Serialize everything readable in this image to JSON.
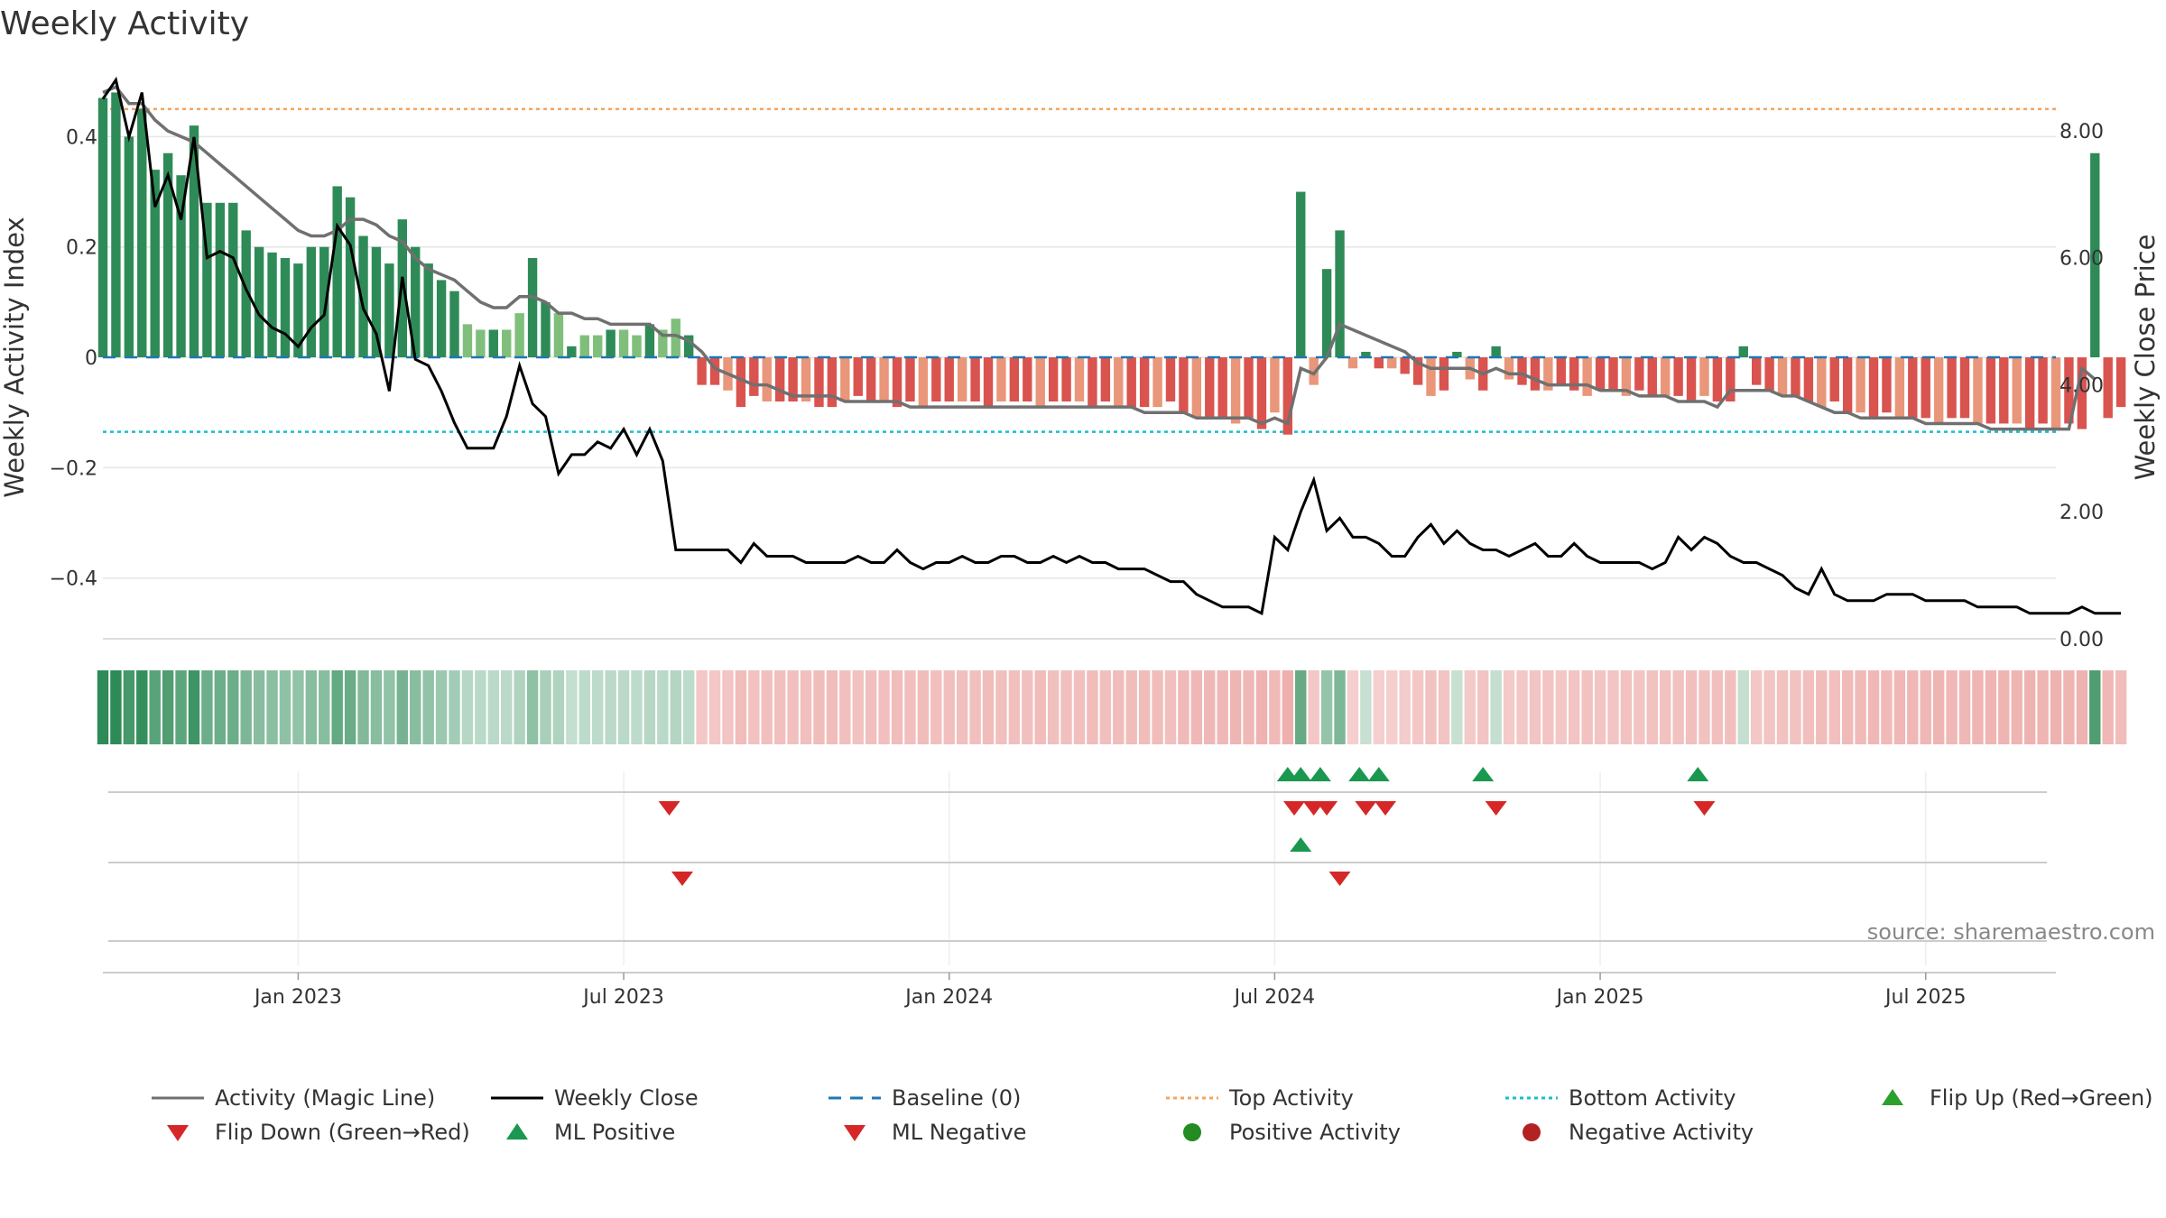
{
  "chart_data": {
    "type": "bar",
    "title": "Weekly Activity",
    "left_axis_label": "Weekly Activity Index",
    "right_axis_label": "Weekly Close Price",
    "left_ylim": [
      -0.51,
      0.52
    ],
    "right_ylim": [
      0.0,
      8.95
    ],
    "left_ticks": [
      {
        "v": 0.4,
        "label": "0.4"
      },
      {
        "v": 0.2,
        "label": "0.2"
      },
      {
        "v": 0,
        "label": "0"
      },
      {
        "v": -0.2,
        "label": "−0.2"
      },
      {
        "v": -0.4,
        "label": "−0.4"
      }
    ],
    "right_ticks": [
      {
        "v": 8,
        "label": "8.00"
      },
      {
        "v": 6,
        "label": "6.00"
      },
      {
        "v": 4,
        "label": "4.00"
      },
      {
        "v": 2,
        "label": "2.00"
      },
      {
        "v": 0,
        "label": "0.00"
      }
    ],
    "x_ticks": [
      "Jan 2023",
      "Jul 2023",
      "Jan 2024",
      "Jul 2024",
      "Jan 2025",
      "Jul 2025"
    ],
    "x_tick_weeks": [
      17,
      42,
      67,
      92,
      117,
      142
    ],
    "week_range": [
      2,
      152
    ],
    "top_activity": 0.45,
    "bottom_activity": -0.135,
    "source": "source: sharemaestro.com",
    "activity_bars": [
      0.47,
      0.48,
      0.4,
      0.45,
      0.34,
      0.37,
      0.33,
      0.42,
      0.28,
      0.28,
      0.28,
      0.23,
      0.2,
      0.19,
      0.18,
      0.17,
      0.2,
      0.2,
      0.31,
      0.29,
      0.22,
      0.2,
      0.17,
      0.25,
      0.2,
      0.17,
      0.14,
      0.12,
      0.06,
      0.05,
      0.05,
      0.05,
      0.08,
      0.18,
      0.1,
      0.08,
      0.02,
      0.04,
      0.04,
      0.05,
      0.05,
      0.04,
      0.06,
      0.05,
      0.07,
      0.04,
      -0.05,
      -0.05,
      -0.06,
      -0.09,
      -0.07,
      -0.08,
      -0.08,
      -0.08,
      -0.08,
      -0.09,
      -0.09,
      -0.08,
      -0.07,
      -0.08,
      -0.08,
      -0.09,
      -0.08,
      -0.09,
      -0.08,
      -0.08,
      -0.08,
      -0.08,
      -0.09,
      -0.08,
      -0.08,
      -0.08,
      -0.09,
      -0.08,
      -0.08,
      -0.08,
      -0.09,
      -0.08,
      -0.09,
      -0.09,
      -0.09,
      -0.09,
      -0.08,
      -0.1,
      -0.11,
      -0.11,
      -0.11,
      -0.12,
      -0.11,
      -0.13,
      -0.1,
      -0.14,
      0.3,
      -0.05,
      0.16,
      0.23,
      -0.02,
      0.01,
      -0.02,
      -0.02,
      -0.03,
      -0.05,
      -0.07,
      -0.06,
      0.01,
      -0.04,
      -0.06,
      0.02,
      -0.04,
      -0.05,
      -0.06,
      -0.06,
      -0.05,
      -0.06,
      -0.07,
      -0.06,
      -0.06,
      -0.07,
      -0.06,
      -0.07,
      -0.07,
      -0.07,
      -0.08,
      -0.07,
      -0.08,
      -0.08,
      0.02,
      -0.05,
      -0.06,
      -0.07,
      -0.07,
      -0.08,
      -0.09,
      -0.08,
      -0.1,
      -0.1,
      -0.11,
      -0.1,
      -0.11,
      -0.11,
      -0.11,
      -0.12,
      -0.11,
      -0.11,
      -0.12,
      -0.12,
      -0.12,
      -0.12,
      -0.13,
      -0.12,
      -0.13,
      -0.12,
      -0.13,
      0.37,
      -0.11,
      -0.09
    ],
    "magic_line": [
      0.48,
      0.49,
      0.46,
      0.46,
      0.43,
      0.41,
      0.4,
      0.39,
      0.37,
      0.35,
      0.33,
      0.31,
      0.29,
      0.27,
      0.25,
      0.23,
      0.22,
      0.22,
      0.23,
      0.25,
      0.25,
      0.24,
      0.22,
      0.21,
      0.18,
      0.16,
      0.15,
      0.14,
      0.12,
      0.1,
      0.09,
      0.09,
      0.11,
      0.11,
      0.1,
      0.08,
      0.08,
      0.07,
      0.07,
      0.06,
      0.06,
      0.06,
      0.06,
      0.04,
      0.04,
      0.03,
      0.01,
      -0.02,
      -0.03,
      -0.04,
      -0.05,
      -0.05,
      -0.06,
      -0.07,
      -0.07,
      -0.07,
      -0.07,
      -0.08,
      -0.08,
      -0.08,
      -0.08,
      -0.08,
      -0.09,
      -0.09,
      -0.09,
      -0.09,
      -0.09,
      -0.09,
      -0.09,
      -0.09,
      -0.09,
      -0.09,
      -0.09,
      -0.09,
      -0.09,
      -0.09,
      -0.09,
      -0.09,
      -0.09,
      -0.09,
      -0.1,
      -0.1,
      -0.1,
      -0.1,
      -0.11,
      -0.11,
      -0.11,
      -0.11,
      -0.11,
      -0.12,
      -0.11,
      -0.12,
      -0.02,
      -0.03,
      0.0,
      0.06,
      0.05,
      0.04,
      0.03,
      0.02,
      0.01,
      -0.01,
      -0.02,
      -0.02,
      -0.02,
      -0.02,
      -0.03,
      -0.02,
      -0.03,
      -0.03,
      -0.04,
      -0.05,
      -0.05,
      -0.05,
      -0.05,
      -0.06,
      -0.06,
      -0.06,
      -0.07,
      -0.07,
      -0.07,
      -0.08,
      -0.08,
      -0.08,
      -0.09,
      -0.06,
      -0.06,
      -0.06,
      -0.06,
      -0.07,
      -0.07,
      -0.08,
      -0.09,
      -0.1,
      -0.1,
      -0.11,
      -0.11,
      -0.11,
      -0.11,
      -0.11,
      -0.12,
      -0.12,
      -0.12,
      -0.12,
      -0.12,
      -0.13,
      -0.13,
      -0.13,
      -0.13,
      -0.13,
      -0.13,
      -0.13,
      -0.02,
      -0.04
    ],
    "weekly_close": [
      8.5,
      8.8,
      7.9,
      8.6,
      6.8,
      7.3,
      6.6,
      7.9,
      6.0,
      6.1,
      6.0,
      5.5,
      5.1,
      4.9,
      4.8,
      4.6,
      4.9,
      5.1,
      6.5,
      6.2,
      5.2,
      4.8,
      3.9,
      5.7,
      4.4,
      4.3,
      3.9,
      3.4,
      3.0,
      3.0,
      3.0,
      3.5,
      4.3,
      3.7,
      3.5,
      2.6,
      2.9,
      2.9,
      3.1,
      3.0,
      3.3,
      2.9,
      3.3,
      2.8,
      1.4,
      1.4,
      1.4,
      1.4,
      1.4,
      1.2,
      1.5,
      1.3,
      1.3,
      1.3,
      1.2,
      1.2,
      1.2,
      1.2,
      1.3,
      1.2,
      1.2,
      1.4,
      1.2,
      1.1,
      1.2,
      1.2,
      1.3,
      1.2,
      1.2,
      1.3,
      1.3,
      1.2,
      1.2,
      1.3,
      1.2,
      1.3,
      1.2,
      1.2,
      1.1,
      1.1,
      1.1,
      1.0,
      0.9,
      0.9,
      0.7,
      0.6,
      0.5,
      0.5,
      0.5,
      0.4,
      1.6,
      1.4,
      2.0,
      2.5,
      1.7,
      1.9,
      1.6,
      1.6,
      1.5,
      1.3,
      1.3,
      1.6,
      1.8,
      1.5,
      1.7,
      1.5,
      1.4,
      1.4,
      1.3,
      1.4,
      1.5,
      1.3,
      1.3,
      1.5,
      1.3,
      1.2,
      1.2,
      1.2,
      1.2,
      1.1,
      1.2,
      1.6,
      1.4,
      1.6,
      1.5,
      1.3,
      1.2,
      1.2,
      1.1,
      1.0,
      0.8,
      0.7,
      1.1,
      0.7,
      0.6,
      0.6,
      0.6,
      0.7,
      0.7,
      0.7,
      0.6,
      0.6,
      0.6,
      0.6,
      0.5,
      0.5,
      0.5,
      0.5,
      0.4,
      0.4,
      0.4,
      0.4,
      0.5,
      0.4,
      0.4,
      0.4
    ],
    "signal_rows": [
      {
        "up": [
          93,
          94,
          95.5,
          98.5,
          100,
          108,
          124.5
        ],
        "down": [
          45.5,
          93.5,
          95,
          96,
          99,
          100.5,
          109,
          125
        ]
      },
      {
        "up": [
          94
        ],
        "down": [
          46.5,
          97
        ]
      },
      {
        "up": [],
        "down": []
      }
    ],
    "legend": [
      {
        "label": "Activity (Magic Line)",
        "marker": "line-solid",
        "color": "#707070"
      },
      {
        "label": "Weekly Close",
        "marker": "line-solid",
        "color": "#000000"
      },
      {
        "label": "Baseline (0)",
        "marker": "line-dashed",
        "color": "#1f77b4"
      },
      {
        "label": "Top Activity",
        "marker": "line-dotted",
        "color": "#f4a460"
      },
      {
        "label": "Bottom Activity",
        "marker": "line-dotted",
        "color": "#17becf"
      },
      {
        "label": "Flip Up (Red→Green)",
        "marker": "triangle-up",
        "color": "#2ca02c"
      },
      {
        "label": "Flip Down (Green→Red)",
        "marker": "triangle-down",
        "color": "#d62728"
      },
      {
        "label": "ML Positive",
        "marker": "triangle-up",
        "color": "#1a9850"
      },
      {
        "label": "ML Negative",
        "marker": "triangle-down",
        "color": "#d62728"
      },
      {
        "label": "Positive Activity",
        "marker": "circle",
        "color": "#228b22"
      },
      {
        "label": "Negative Activity",
        "marker": "circle",
        "color": "#b22222"
      }
    ],
    "colors": {
      "strong_green": "#2e8b57",
      "light_green": "#7fbf7b",
      "strong_red": "#d9534f",
      "light_red": "#e9967a",
      "triangle_up": "#1a9850",
      "triangle_down": "#d62728",
      "grid": "#e6e6e6"
    }
  }
}
